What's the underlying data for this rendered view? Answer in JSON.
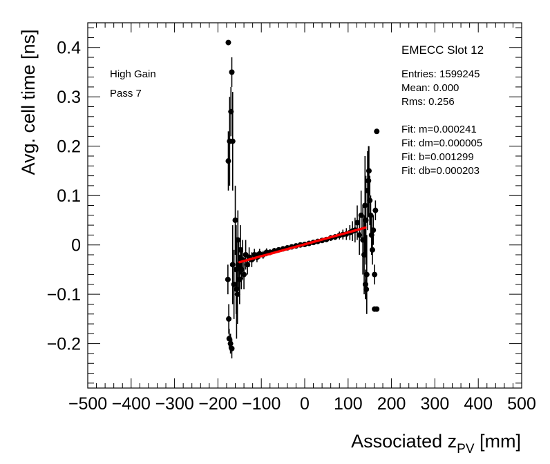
{
  "chart_data": {
    "type": "scatter",
    "xlabel": "Associated z",
    "xlabel_sub": "PV",
    "xlabel_unit": " [mm]",
    "ylabel": "Avg. cell time [ns]",
    "xlim": [
      -500,
      500
    ],
    "ylim": [
      -0.29,
      0.45
    ],
    "x_ticks": [
      -500,
      -400,
      -300,
      -200,
      -100,
      0,
      100,
      200,
      300,
      400,
      500
    ],
    "x_tick_labels": [
      "−500",
      "−400",
      "−300",
      "−200",
      "−100",
      "0",
      "100",
      "200",
      "300",
      "400",
      "500"
    ],
    "y_ticks": [
      -0.2,
      -0.1,
      0,
      0.1,
      0.2,
      0.3,
      0.4
    ],
    "y_tick_labels": [
      "−0.2",
      "−0.1",
      "0",
      "0.1",
      "0.2",
      "0.3",
      "0.4"
    ],
    "grid": false,
    "annotations": {
      "gain": "High Gain",
      "pass": "Pass 7",
      "title": "EMECC Slot 12",
      "stats": [
        "Entries: 1599245",
        "Mean: 0.000",
        "Rms: 0.256"
      ],
      "fit": [
        "Fit: m=0.000241",
        "Fit: dm=0.000005",
        "Fit: b=0.001299",
        "Fit: db=0.000203"
      ]
    },
    "fit_line": {
      "x": [
        -150,
        140
      ],
      "y": [
        -0.0349,
        0.035
      ],
      "color": "#ff0000"
    },
    "points": [
      {
        "x": -176,
        "y": 0.41,
        "e": 0.0
      },
      {
        "x": -168,
        "y": 0.35,
        "e": 0.03
      },
      {
        "x": -170,
        "y": 0.27,
        "e": 0.05
      },
      {
        "x": -173,
        "y": 0.21,
        "e": 0.09
      },
      {
        "x": -166,
        "y": 0.21,
        "e": 0.1
      },
      {
        "x": -176,
        "y": 0.17,
        "e": 0.06
      },
      {
        "x": -177,
        "y": -0.07,
        "e": 0.03
      },
      {
        "x": -175,
        "y": -0.15,
        "e": 0.03
      },
      {
        "x": -174,
        "y": -0.19,
        "e": 0.02
      },
      {
        "x": -171,
        "y": -0.2,
        "e": 0.02
      },
      {
        "x": -168,
        "y": -0.21,
        "e": 0.02
      },
      {
        "x": -166,
        "y": -0.04,
        "e": 0.08
      },
      {
        "x": -163,
        "y": -0.08,
        "e": 0.07
      },
      {
        "x": -160,
        "y": 0.05,
        "e": 0.07
      },
      {
        "x": -158,
        "y": -0.05,
        "e": 0.09
      },
      {
        "x": -157,
        "y": -0.09,
        "e": 0.1
      },
      {
        "x": -155,
        "y": -0.1,
        "e": 0.06
      },
      {
        "x": -154,
        "y": 0.01,
        "e": 0.06
      },
      {
        "x": -152,
        "y": -0.04,
        "e": 0.05
      },
      {
        "x": -150,
        "y": -0.07,
        "e": 0.05
      },
      {
        "x": -148,
        "y": -0.01,
        "e": 0.05
      },
      {
        "x": -146,
        "y": -0.05,
        "e": 0.04
      },
      {
        "x": -143,
        "y": -0.03,
        "e": 0.04
      },
      {
        "x": -140,
        "y": -0.06,
        "e": 0.03
      },
      {
        "x": -136,
        "y": -0.02,
        "e": 0.03
      },
      {
        "x": -132,
        "y": -0.04,
        "e": 0.02
      },
      {
        "x": -128,
        "y": -0.025,
        "e": 0.02
      },
      {
        "x": -122,
        "y": -0.03,
        "e": 0.015
      },
      {
        "x": -116,
        "y": -0.02,
        "e": 0.012
      },
      {
        "x": -110,
        "y": -0.025,
        "e": 0.01
      },
      {
        "x": -104,
        "y": -0.018,
        "e": 0.01
      },
      {
        "x": -96,
        "y": -0.02,
        "e": 0.008
      },
      {
        "x": -88,
        "y": -0.015,
        "e": 0.008
      },
      {
        "x": -80,
        "y": -0.015,
        "e": 0.006
      },
      {
        "x": -70,
        "y": -0.012,
        "e": 0.006
      },
      {
        "x": -60,
        "y": -0.01,
        "e": 0.005
      },
      {
        "x": -50,
        "y": -0.008,
        "e": 0.005
      },
      {
        "x": -40,
        "y": -0.006,
        "e": 0.004
      },
      {
        "x": -30,
        "y": -0.004,
        "e": 0.004
      },
      {
        "x": -20,
        "y": -0.002,
        "e": 0.004
      },
      {
        "x": -10,
        "y": 0.0,
        "e": 0.004
      },
      {
        "x": 0,
        "y": 0.001,
        "e": 0.004
      },
      {
        "x": 10,
        "y": 0.003,
        "e": 0.004
      },
      {
        "x": 20,
        "y": 0.005,
        "e": 0.004
      },
      {
        "x": 30,
        "y": 0.007,
        "e": 0.005
      },
      {
        "x": 40,
        "y": 0.009,
        "e": 0.005
      },
      {
        "x": 50,
        "y": 0.011,
        "e": 0.005
      },
      {
        "x": 60,
        "y": 0.014,
        "e": 0.006
      },
      {
        "x": 70,
        "y": 0.016,
        "e": 0.006
      },
      {
        "x": 80,
        "y": 0.019,
        "e": 0.008
      },
      {
        "x": 88,
        "y": 0.021,
        "e": 0.01
      },
      {
        "x": 96,
        "y": 0.022,
        "e": 0.012
      },
      {
        "x": 104,
        "y": 0.025,
        "e": 0.015
      },
      {
        "x": 110,
        "y": 0.028,
        "e": 0.02
      },
      {
        "x": 116,
        "y": 0.03,
        "e": 0.025
      },
      {
        "x": 121,
        "y": 0.045,
        "e": 0.035
      },
      {
        "x": 126,
        "y": 0.02,
        "e": 0.04
      },
      {
        "x": 130,
        "y": 0.06,
        "e": 0.05
      },
      {
        "x": 134,
        "y": 0.01,
        "e": 0.07
      },
      {
        "x": 137,
        "y": -0.02,
        "e": 0.08
      },
      {
        "x": 139,
        "y": 0.08,
        "e": 0.1
      },
      {
        "x": 141,
        "y": 0.05,
        "e": 0.09
      },
      {
        "x": 143,
        "y": -0.06,
        "e": 0.08
      },
      {
        "x": 145,
        "y": 0.11,
        "e": 0.08
      },
      {
        "x": 147,
        "y": 0.13,
        "e": 0.07
      },
      {
        "x": 148,
        "y": 0.15,
        "e": 0.05
      },
      {
        "x": 150,
        "y": 0.09,
        "e": 0.05
      },
      {
        "x": 152,
        "y": 0.06,
        "e": 0.04
      },
      {
        "x": 154,
        "y": 0.02,
        "e": 0.04
      },
      {
        "x": 156,
        "y": -0.01,
        "e": 0.03
      },
      {
        "x": 158,
        "y": 0.03,
        "e": 0.03
      },
      {
        "x": 140,
        "y": -0.08,
        "e": 0.03
      },
      {
        "x": 142,
        "y": -0.09,
        "e": 0.02
      },
      {
        "x": 161,
        "y": -0.06,
        "e": 0.02
      },
      {
        "x": 163,
        "y": 0.07,
        "e": 0.02
      },
      {
        "x": 166,
        "y": 0.23,
        "e": 0.0
      },
      {
        "x": 161,
        "y": -0.13,
        "e": 0.0
      },
      {
        "x": 166,
        "y": -0.13,
        "e": 0.0
      }
    ]
  }
}
